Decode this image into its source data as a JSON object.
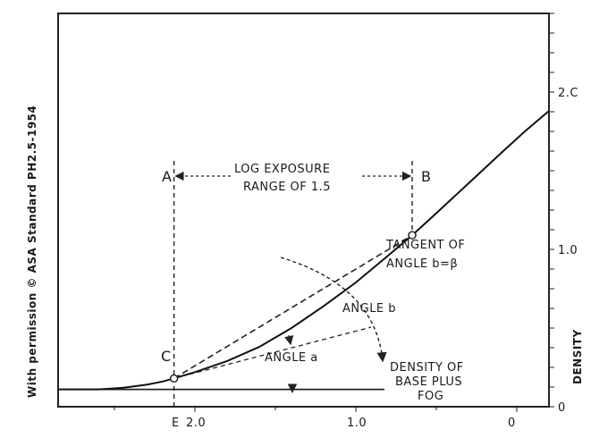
{
  "chart_data": {
    "type": "line",
    "title": "",
    "xlabel": "",
    "ylabel": "DENSITY",
    "x_axis": {
      "tick_values": [
        2.0,
        1.0,
        0
      ],
      "tick_labels": [
        "2.0",
        "1.0",
        "0"
      ],
      "range": [
        2.85,
        -0.2
      ],
      "reversed": true,
      "extra_label": "E"
    },
    "y_axis": {
      "tick_values": [
        0,
        1.0,
        2.0
      ],
      "tick_labels": [
        "0",
        "1.0",
        "2.C"
      ],
      "range": [
        0,
        2.5
      ],
      "position": "right"
    },
    "grid": false,
    "series": [
      {
        "x": [
          2.85,
          2.6,
          2.45,
          2.3,
          2.2,
          2.13,
          2.0,
          1.8,
          1.6,
          1.4,
          1.2,
          1.0,
          0.8,
          0.65,
          0.5,
          0.3,
          0.1,
          -0.05,
          -0.2
        ],
        "y": [
          0.11,
          0.11,
          0.12,
          0.14,
          0.16,
          0.18,
          0.22,
          0.29,
          0.38,
          0.5,
          0.64,
          0.79,
          0.96,
          1.09,
          1.23,
          1.42,
          1.61,
          1.75,
          1.88
        ]
      }
    ],
    "base_fog_density": 0.11,
    "points": [
      {
        "label": "C",
        "x": 2.13,
        "y": 0.18
      },
      {
        "label": "B",
        "x": 0.65,
        "y": 1.09
      }
    ],
    "annotations": {
      "A": "A",
      "log_exposure_line1": "LOG EXPOSURE",
      "log_exposure_line2": "RANGE OF 1.5",
      "tangent_line1": "TANGENT OF",
      "tangent_line2": "ANGLE b=β",
      "angle_b": "ANGLE b",
      "angle_a": "ANGLE a",
      "density_line1": "DENSITY OF",
      "density_line2": "BASE PLUS",
      "density_line3": "FOG"
    },
    "side_text": "With permission © ASA Standard PH2.5-1954"
  }
}
